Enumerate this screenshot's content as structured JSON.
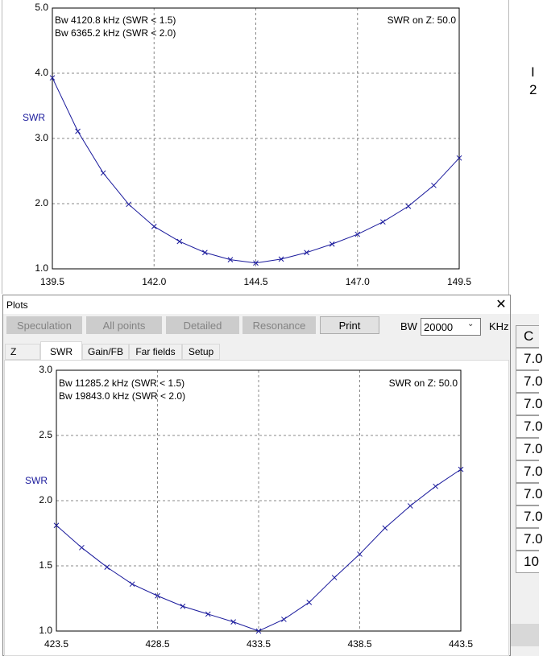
{
  "window": {
    "title": "Plots"
  },
  "buttons": [
    "Speculation",
    "All points",
    "Detailed",
    "Resonance",
    "Print"
  ],
  "bw": {
    "label": "BW",
    "value": "20000",
    "unit": "KHz"
  },
  "tabs": [
    "Z",
    "SWR",
    "Gain/FB",
    "Far fields",
    "Setup"
  ],
  "side": {
    "text": [
      "I",
      "2"
    ],
    "table_header": "C",
    "cells": [
      "7.0",
      "7.0",
      "7.0",
      "7.0",
      "7.0",
      "7.0",
      "7.0",
      "7.0",
      "7.0",
      "10"
    ]
  },
  "chart_data": [
    {
      "type": "line",
      "ylabel": "SWR",
      "color": "#1a1a9c",
      "grid": true,
      "annotations": [
        "Bw 4120.8 kHz (SWR < 1.5)",
        "Bw 6365.2 kHz (SWR < 2.0)",
        "SWR on Z: 50.0"
      ],
      "x": [
        139.5,
        140.125,
        140.75,
        141.375,
        142,
        142.625,
        143.25,
        143.875,
        144.5,
        145.125,
        145.75,
        146.375,
        147,
        147.625,
        148.25,
        148.875,
        149.5
      ],
      "values": [
        3.93,
        3.11,
        2.47,
        1.99,
        1.65,
        1.42,
        1.25,
        1.14,
        1.09,
        1.15,
        1.25,
        1.38,
        1.53,
        1.72,
        1.96,
        2.28,
        2.7
      ],
      "xlim": [
        139.5,
        149.5
      ],
      "ylim": [
        1,
        5
      ],
      "xticks": [
        139.5,
        {
          "value": 142,
          "label": "142.0"
        },
        144.5,
        {
          "value": 147,
          "label": "147.0"
        },
        149.5
      ],
      "yticks": [
        {
          "value": 1,
          "label": "1.0"
        },
        {
          "value": 2,
          "label": "2.0"
        },
        {
          "value": 3,
          "label": "3.0"
        },
        {
          "value": 4,
          "label": "4.0"
        },
        {
          "value": 5,
          "label": "5.0"
        }
      ]
    },
    {
      "type": "line",
      "ylabel": "SWR",
      "color": "#1a1a9c",
      "grid": true,
      "annotations": [
        "Bw 11285.2 kHz (SWR < 1.5)",
        "Bw 19843.0 kHz (SWR < 2.0)",
        "SWR on Z: 50.0"
      ],
      "x": [
        423.5,
        424.75,
        426,
        427.25,
        428.5,
        429.75,
        431,
        432.25,
        433.5,
        434.75,
        436,
        437.25,
        438.5,
        439.75,
        441,
        442.25,
        443.5
      ],
      "values": [
        1.81,
        1.64,
        1.49,
        1.36,
        1.27,
        1.19,
        1.13,
        1.07,
        1.0,
        1.09,
        1.22,
        1.41,
        1.59,
        1.79,
        1.96,
        2.11,
        2.24
      ],
      "xlim": [
        423.5,
        443.5
      ],
      "ylim": [
        1,
        3
      ],
      "xticks": [
        423.5,
        428.5,
        433.5,
        438.5,
        443.5
      ],
      "yticks": [
        {
          "value": 1,
          "label": "1.0"
        },
        1.5,
        {
          "value": 2,
          "label": "2.0"
        },
        2.5,
        {
          "value": 3,
          "label": "3.0"
        }
      ]
    }
  ]
}
